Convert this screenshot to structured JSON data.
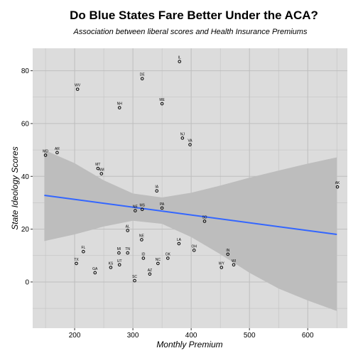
{
  "chart_data": {
    "type": "scatter",
    "title": "Do Blue States Fare Better Under the ACA?",
    "subtitle": "Association between liberal scores and Health Insurance Premiums",
    "xlabel": "Monthly Premium",
    "ylabel": "State Ideology Scores",
    "xlim": [
      128,
      668
    ],
    "ylim": [
      -17.5,
      88.5
    ],
    "xticks": [
      200,
      300,
      400,
      500,
      600
    ],
    "yticks": [
      0,
      20,
      40,
      60,
      80
    ],
    "grid": true,
    "points": [
      {
        "label": "IL",
        "x": 380,
        "y": 83.5
      },
      {
        "label": "DE",
        "x": 316,
        "y": 77
      },
      {
        "label": "WV",
        "x": 205,
        "y": 73
      },
      {
        "label": "ME",
        "x": 350,
        "y": 67.5
      },
      {
        "label": "NH",
        "x": 277,
        "y": 66
      },
      {
        "label": "NJ",
        "x": 385,
        "y": 54.5
      },
      {
        "label": "VA",
        "x": 398,
        "y": 52
      },
      {
        "label": "MD",
        "x": 150,
        "y": 48
      },
      {
        "label": "AR",
        "x": 170,
        "y": 49
      },
      {
        "label": "MT",
        "x": 240,
        "y": 43
      },
      {
        "label": "NM",
        "x": 246,
        "y": 41
      },
      {
        "label": "AK",
        "x": 651,
        "y": 36
      },
      {
        "label": "IA",
        "x": 341,
        "y": 34.5
      },
      {
        "label": "PA",
        "x": 350,
        "y": 28
      },
      {
        "label": "MS",
        "x": 316,
        "y": 27.5
      },
      {
        "label": "NE",
        "x": 304,
        "y": 27
      },
      {
        "label": "SD",
        "x": 423,
        "y": 23
      },
      {
        "label": "AL",
        "x": 291,
        "y": 19.5
      },
      {
        "label": "NE",
        "x": 315,
        "y": 16
      },
      {
        "label": "LA",
        "x": 379,
        "y": 14.5
      },
      {
        "label": "OH",
        "x": 405,
        "y": 12
      },
      {
        "label": "FL",
        "x": 215,
        "y": 11.5
      },
      {
        "label": "MI",
        "x": 276,
        "y": 11
      },
      {
        "label": "TN",
        "x": 291,
        "y": 11
      },
      {
        "label": "IN",
        "x": 463,
        "y": 10.5
      },
      {
        "label": "ID",
        "x": 318,
        "y": 9
      },
      {
        "label": "OK",
        "x": 360,
        "y": 9
      },
      {
        "label": "NC",
        "x": 343,
        "y": 7
      },
      {
        "label": "TX",
        "x": 203,
        "y": 7
      },
      {
        "label": "UT",
        "x": 277,
        "y": 6.5
      },
      {
        "label": "WY",
        "x": 452,
        "y": 5.5
      },
      {
        "label": "WI",
        "x": 473,
        "y": 6.5
      },
      {
        "label": "KS",
        "x": 262,
        "y": 5.5
      },
      {
        "label": "GA",
        "x": 235,
        "y": 3.5
      },
      {
        "label": "AZ",
        "x": 329,
        "y": 3
      },
      {
        "label": "SC",
        "x": 303,
        "y": 0.5
      }
    ],
    "trend": {
      "x": [
        148,
        650
      ],
      "y": [
        32.8,
        18.0
      ],
      "color": "#3366ff"
    },
    "confidence_band": {
      "x": [
        148,
        200,
        250,
        300,
        350,
        400,
        450,
        500,
        550,
        600,
        650
      ],
      "lower": [
        15.5,
        18.0,
        21.0,
        23.2,
        22.0,
        17.0,
        10.5,
        3.5,
        -2.5,
        -7.0,
        -11.0
      ],
      "upper": [
        50.0,
        45.0,
        38.5,
        33.5,
        32.0,
        33.8,
        36.5,
        39.5,
        42.2,
        44.8,
        47.2
      ]
    },
    "colors": {
      "panel": "#dcdcdc",
      "grid": "#bebebe",
      "band": "#bdbdbd",
      "point": "#000000"
    }
  }
}
